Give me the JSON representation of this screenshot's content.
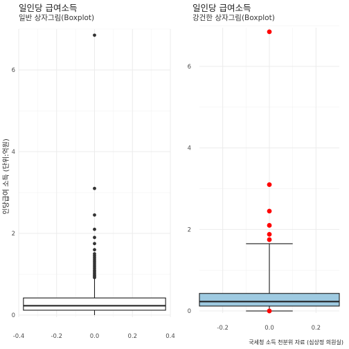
{
  "chart_data": [
    {
      "type": "boxplot",
      "title": "일인당 급여소득",
      "subtitle": "일반 상자그림(Boxplot)",
      "ylabel": "인당급여 소득 (단위:억원)",
      "xlim": [
        -0.4,
        0.4
      ],
      "ylim": [
        -0.05,
        7.0
      ],
      "x_ticks": [
        "-0.4",
        "-0.2",
        "0.0",
        "0.2",
        "0.4"
      ],
      "x_tick_values": [
        -0.4,
        -0.2,
        0.0,
        0.2,
        0.4
      ],
      "y_ticks": [
        "0",
        "2",
        "4",
        "6"
      ],
      "y_tick_values": [
        0,
        2,
        4,
        6
      ],
      "box": {
        "x_left": -0.375,
        "x_right": 0.375,
        "q1": 0.12,
        "median": 0.23,
        "q3": 0.42,
        "whisker_low": 0.0,
        "whisker_high": 0.9
      },
      "outliers": [
        6.85,
        3.1,
        2.45,
        2.1,
        1.9,
        1.75,
        1.6,
        1.5,
        1.45,
        1.4,
        1.35,
        1.3,
        1.25,
        1.2,
        1.15,
        1.1,
        1.06,
        1.02,
        0.98,
        0.95,
        0.92
      ],
      "outlier_color": "#333333",
      "grid": true
    },
    {
      "type": "boxplot",
      "title": "일인당 급여소득",
      "subtitle": "강건한 상자그림(Boxplot)",
      "xlim": [
        -0.3,
        0.3
      ],
      "ylim": [
        -0.05,
        6.95
      ],
      "x_ticks": [
        "-0.2",
        "0.0",
        "0.2"
      ],
      "x_tick_values": [
        -0.2,
        0.0,
        0.2
      ],
      "y_ticks": [
        "0",
        "2",
        "4",
        "6"
      ],
      "y_tick_values": [
        0,
        2,
        4,
        6
      ],
      "box": {
        "x_left": -0.3,
        "x_right": 0.3,
        "q1": 0.12,
        "median": 0.23,
        "q3": 0.43,
        "whisker_low": 0.0,
        "whisker_high": 1.65,
        "cap_half_width": 0.1
      },
      "box_fill": "#9ecae1",
      "outliers": [
        6.85,
        3.1,
        2.45,
        2.1,
        1.88,
        1.75,
        0.0
      ],
      "outlier_color": "#ff0000",
      "grid": true
    }
  ],
  "caption": "국세청 소득 천분위 자료 (심상정 의원실)"
}
